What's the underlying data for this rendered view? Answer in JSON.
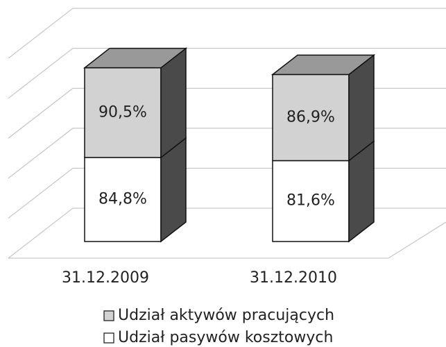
{
  "chart_data": {
    "type": "bar3d_stacked",
    "categories": [
      "31.12.2009",
      "31.12.2010"
    ],
    "series": [
      {
        "name": "Udział pasywów kosztowych",
        "color": "#ffffff",
        "values": [
          84.8,
          81.6
        ],
        "value_labels": [
          "84,8%",
          "81,6%"
        ]
      },
      {
        "name": "Udział aktywów pracujących",
        "color": "#d2d2d2",
        "values": [
          90.5,
          86.9
        ],
        "value_labels": [
          "90,5%",
          "86,9%"
        ]
      }
    ],
    "ylim": [
      0,
      250
    ],
    "yticks": [
      0,
      50,
      100,
      150,
      200,
      250
    ],
    "grid": true,
    "legend": "bottom"
  }
}
